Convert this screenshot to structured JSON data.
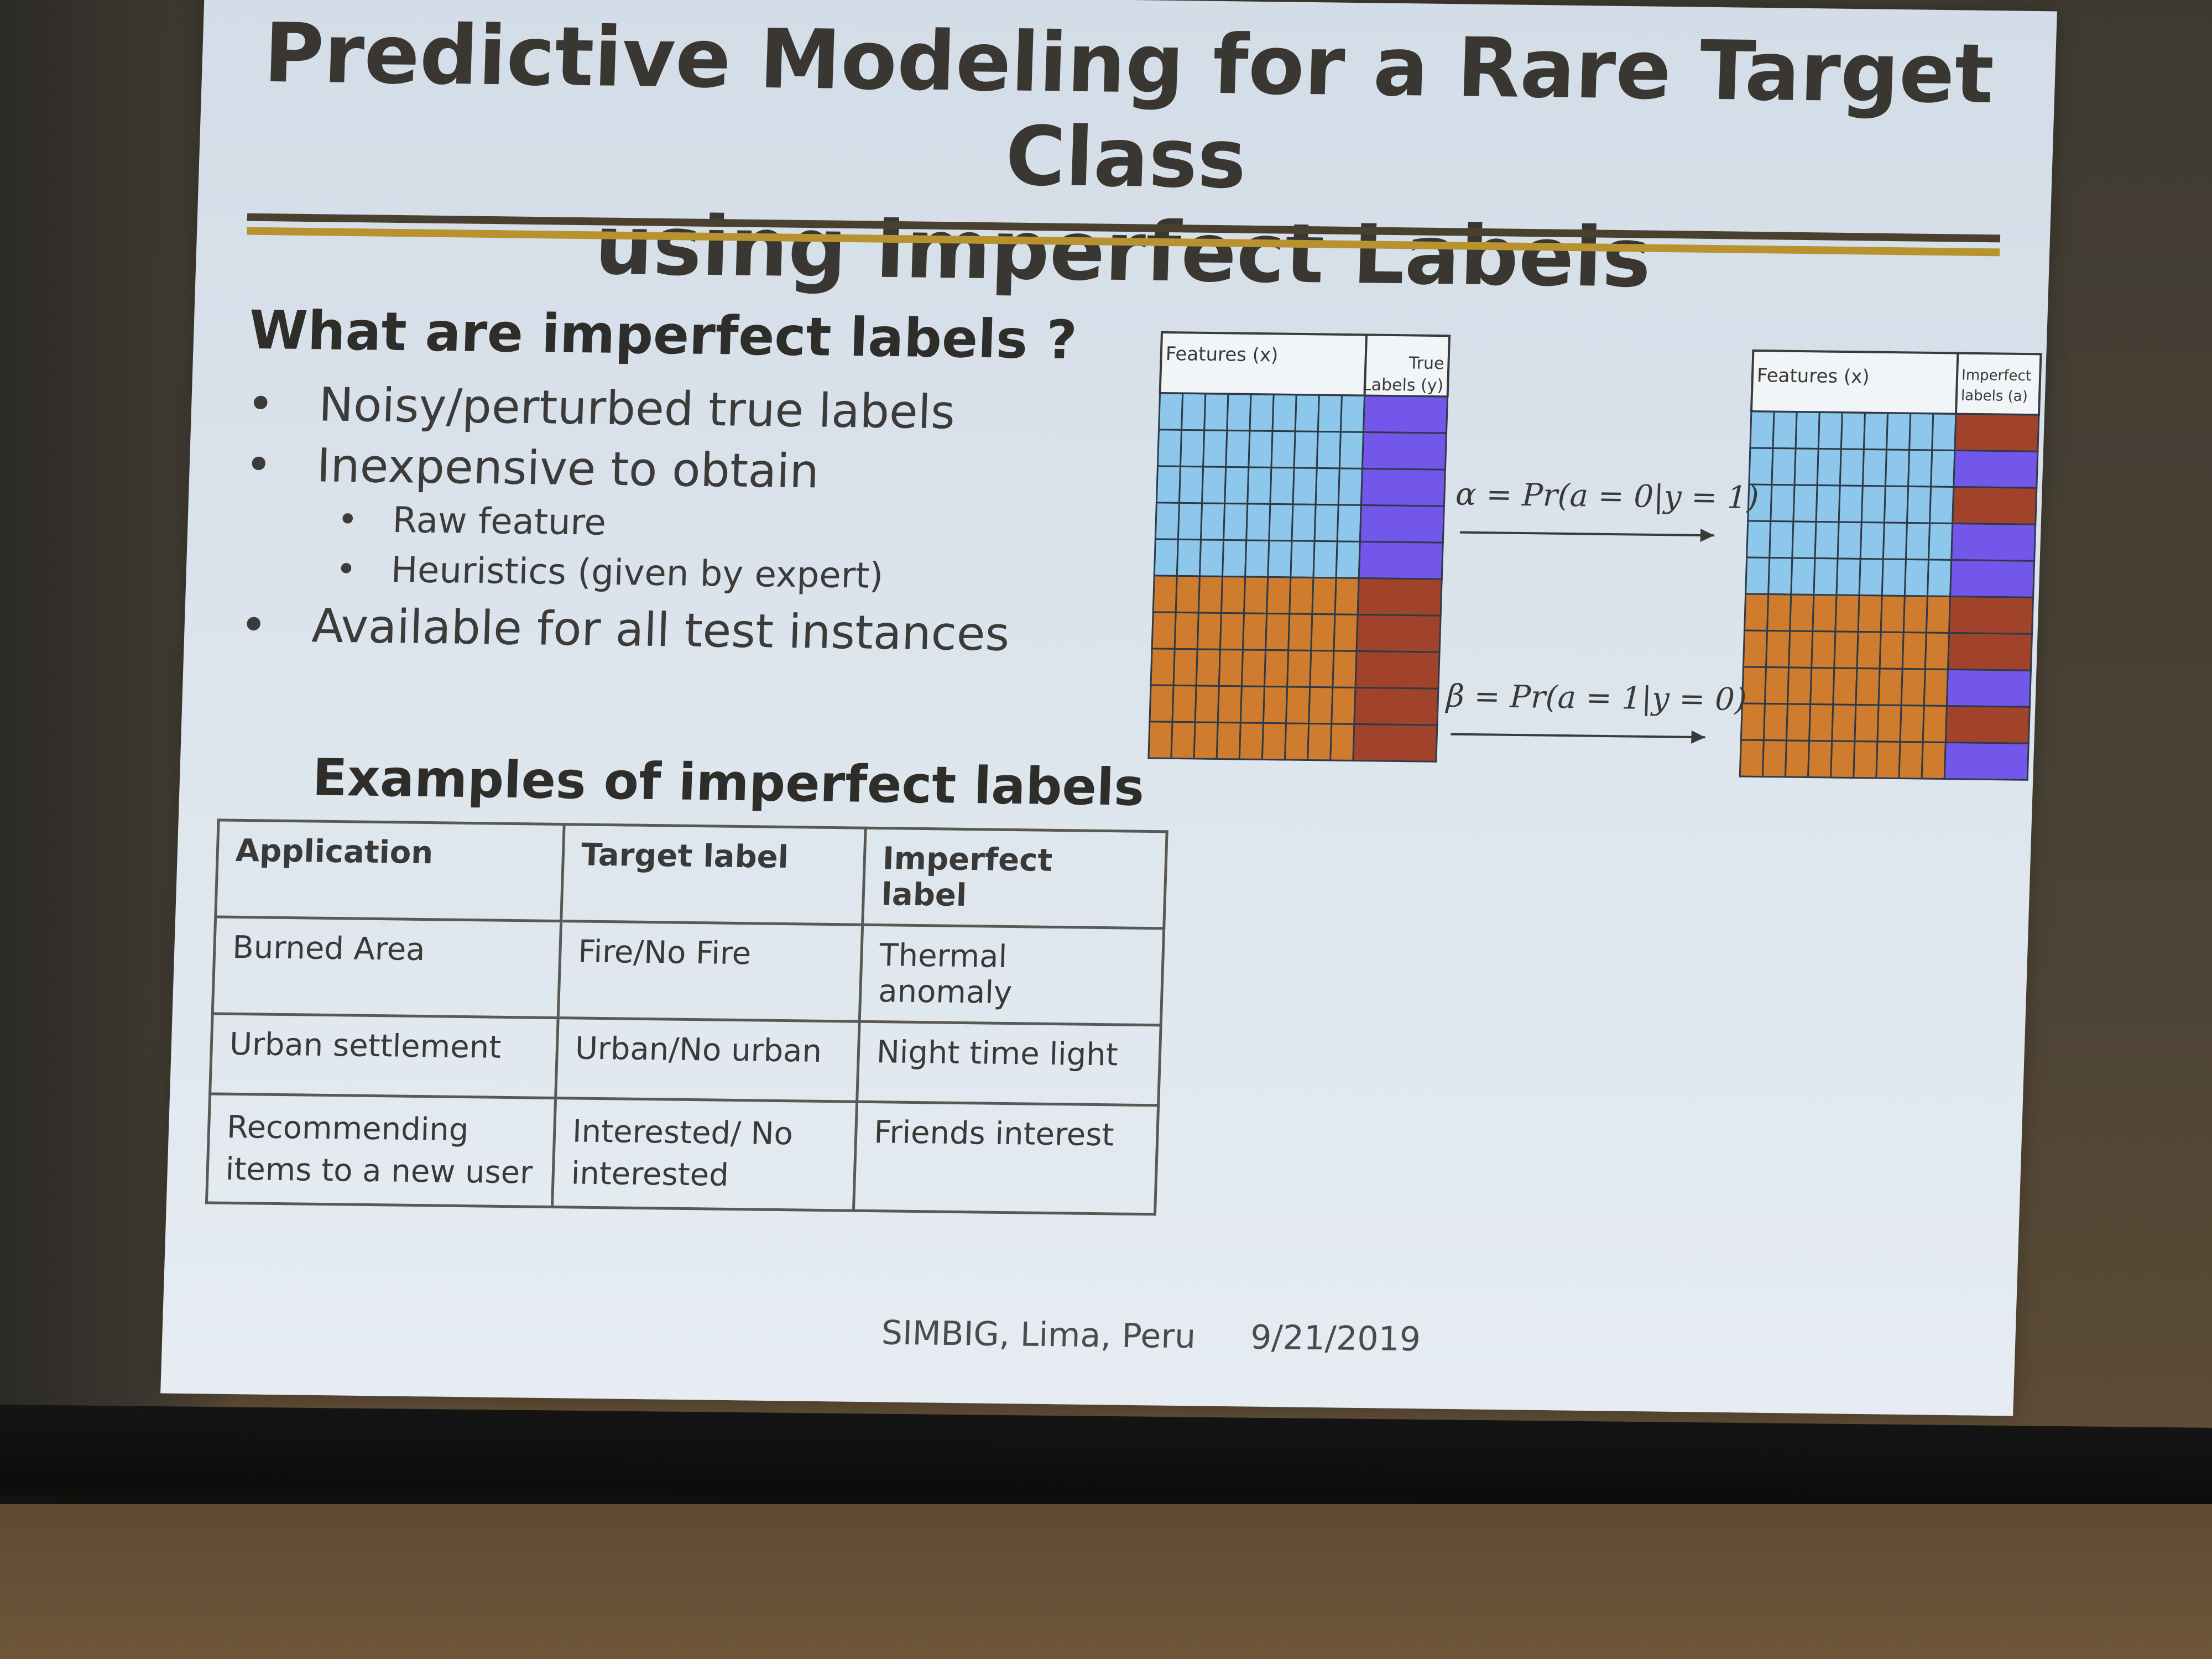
{
  "slide": {
    "title_line1": "Predictive Modeling for a Rare Target Class",
    "title_line2": "using Imperfect Labels",
    "section_heading": "What are imperfect labels ?",
    "bullets": [
      "Noisy/perturbed true labels",
      "Inexpensive to obtain",
      "Raw feature",
      "Heuristics (given by expert)",
      "Available for all test instances"
    ],
    "bullet_symbol": "•",
    "diagram": {
      "left_features_label": "Features (x)",
      "left_labels_line1": "True",
      "left_labels_line2": "Labels (y)",
      "right_features_label": "Features (x)",
      "right_labels_line1": "Imperfect",
      "right_labels_line2": "labels (a)",
      "alpha_formula": "α = Pr(a = 0|y = 1)",
      "beta_formula": "β = Pr(a = 1|y = 0)",
      "colors": {
        "feature_positive": "#8ec7ec",
        "feature_negative": "#cf7c2e",
        "label_positive": "#7356ea",
        "label_negative": "#a1432a",
        "grid_line": "#2e3a48"
      }
    },
    "examples_heading": "Examples of imperfect labels",
    "table": {
      "headers": [
        "Application",
        "Target label",
        "Imperfect label"
      ],
      "rows": [
        [
          "Burned Area",
          "Fire/No Fire",
          "Thermal anomaly"
        ],
        [
          "Urban settlement",
          "Urban/No urban",
          "Night time light"
        ],
        [
          "Recommending items to a new user",
          "Interested/ No interested",
          "Friends interest"
        ]
      ]
    },
    "footer_venue": "SIMBIG, Lima, Peru",
    "footer_date": "9/21/2019"
  }
}
